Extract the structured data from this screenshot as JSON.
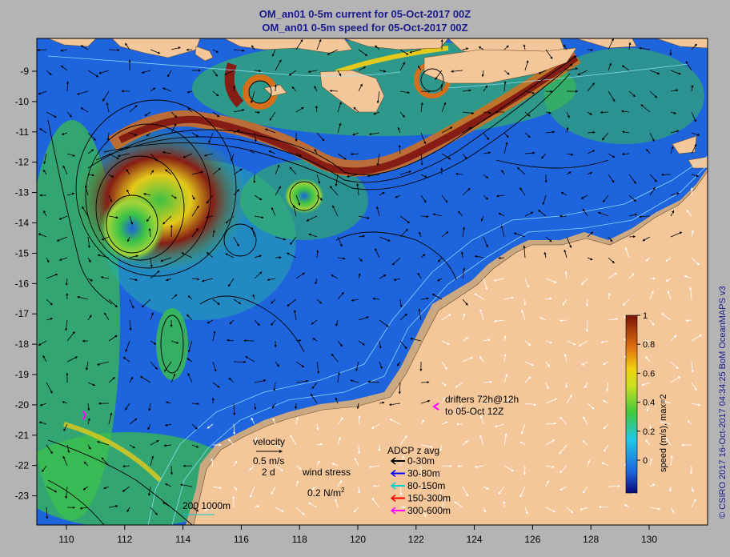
{
  "title_line1": "OM_an01 0-5m current for 05-Oct-2017 00Z",
  "title_line2": "OM_an01 0-5m speed for 05-Oct-2017 00Z",
  "credit": "© CSIRO 2017   16-Oct-2017 04:34:25 BoM OceanMAPS v3",
  "x_ticks": [
    "110",
    "112",
    "114",
    "116",
    "118",
    "120",
    "122",
    "124",
    "126",
    "128",
    "130"
  ],
  "y_ticks": [
    "-9",
    "-10",
    "-11",
    "-12",
    "-13",
    "-14",
    "-15",
    "-16",
    "-17",
    "-18",
    "-19",
    "-20",
    "-21",
    "-22",
    "-23"
  ],
  "colorbar": {
    "ticks": [
      "1",
      "0.8",
      "0.6",
      "0.4",
      "0.2",
      "0"
    ],
    "label": "speed (m/s), max=2"
  },
  "legend": {
    "velocity_title": "velocity",
    "velocity_scale": "0.5 m/s",
    "velocity_time": "2 d",
    "wind_title": "wind stress",
    "wind_scale": "0.2 N/m",
    "wind_superscript": "2",
    "depth_contours": "200  1000m",
    "drifters_line1": "drifters 72h@12h",
    "drifters_line2": "to 05-Oct 12Z",
    "adcp_title": "ADCP z avg",
    "adcp_items": [
      {
        "label": "0-30m",
        "color": "#000000"
      },
      {
        "label": "30-80m",
        "color": "#0000ff"
      },
      {
        "label": "80-150m",
        "color": "#00cccc"
      },
      {
        "label": "150-300m",
        "color": "#ff0000"
      },
      {
        "label": "300-600m",
        "color": "#ff00ff"
      }
    ]
  },
  "colors": {
    "land": "#f4c79b",
    "shelf": "#c9a882",
    "deep": "#1e64dc",
    "mid": "#22c4a0",
    "green": "#3ec83e",
    "yellow": "#f0d010",
    "orange": "#e07010",
    "red": "#8c1a0a",
    "contour": "#9fe8ff"
  }
}
